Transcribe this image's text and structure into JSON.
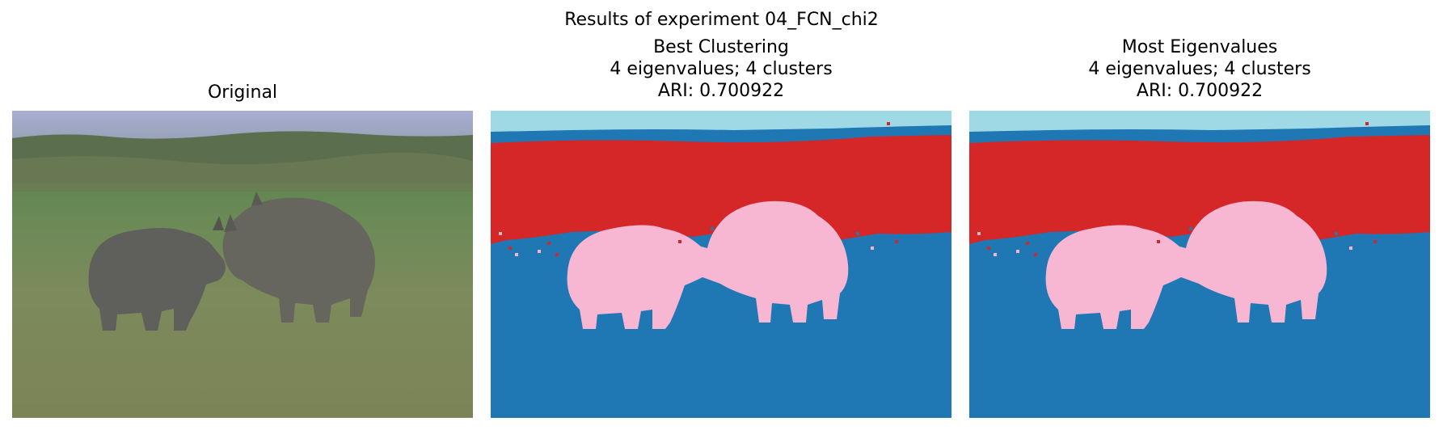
{
  "figure": {
    "suptitle": "Results of experiment 04_FCN_chi2"
  },
  "panels": {
    "original": {
      "title": "Original"
    },
    "best": {
      "title_line1": "Best Clustering",
      "title_line2": "4 eigenvalues; 4 clusters",
      "title_line3": "ARI: 0.700922"
    },
    "most": {
      "title_line1": "Most Eigenvalues",
      "title_line2": "4 eigenvalues; 4 clusters",
      "title_line3": "ARI: 0.700922"
    }
  },
  "colors": {
    "cluster_sky": "#9ed9e5",
    "cluster_band": "#d62728",
    "cluster_rhino": "#f7b6d2",
    "cluster_ground": "#1f77b4"
  }
}
